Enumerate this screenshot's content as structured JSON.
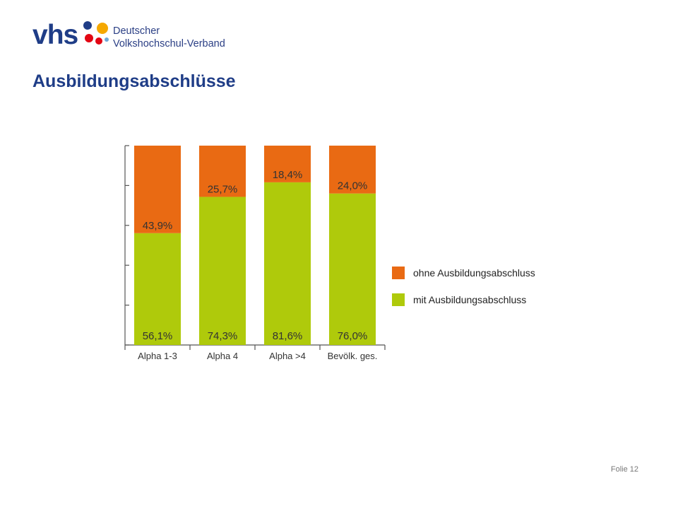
{
  "logo": {
    "mark": "vhs",
    "line1": "Deutscher",
    "line2": "Volkshochschul-Verband",
    "dot_colors": [
      "#1f3d87",
      "#e30613",
      "#f5a800",
      "#6ea7d8"
    ]
  },
  "title": "Ausbildungsabschlüsse",
  "footer": "Folie 12",
  "chart_data": {
    "type": "bar",
    "stacked": true,
    "categories": [
      "Alpha 1-3",
      "Alpha 4",
      "Alpha >4",
      "Bevölk. ges."
    ],
    "series": [
      {
        "name": "mit Ausbildungsabschluss",
        "values": [
          56.1,
          74.3,
          81.6,
          76.0
        ],
        "labels": [
          "56,1%",
          "74,3%",
          "81,6%",
          "76,0%"
        ],
        "color": "#afca0b"
      },
      {
        "name": "ohne Ausbildungsabschluss",
        "values": [
          43.9,
          25.7,
          18.4,
          24.0
        ],
        "labels": [
          "43,9%",
          "25,7%",
          "18,4%",
          "24,0%"
        ],
        "color": "#e96a13"
      }
    ],
    "ylim": [
      0,
      100
    ],
    "legend_position": "right"
  }
}
